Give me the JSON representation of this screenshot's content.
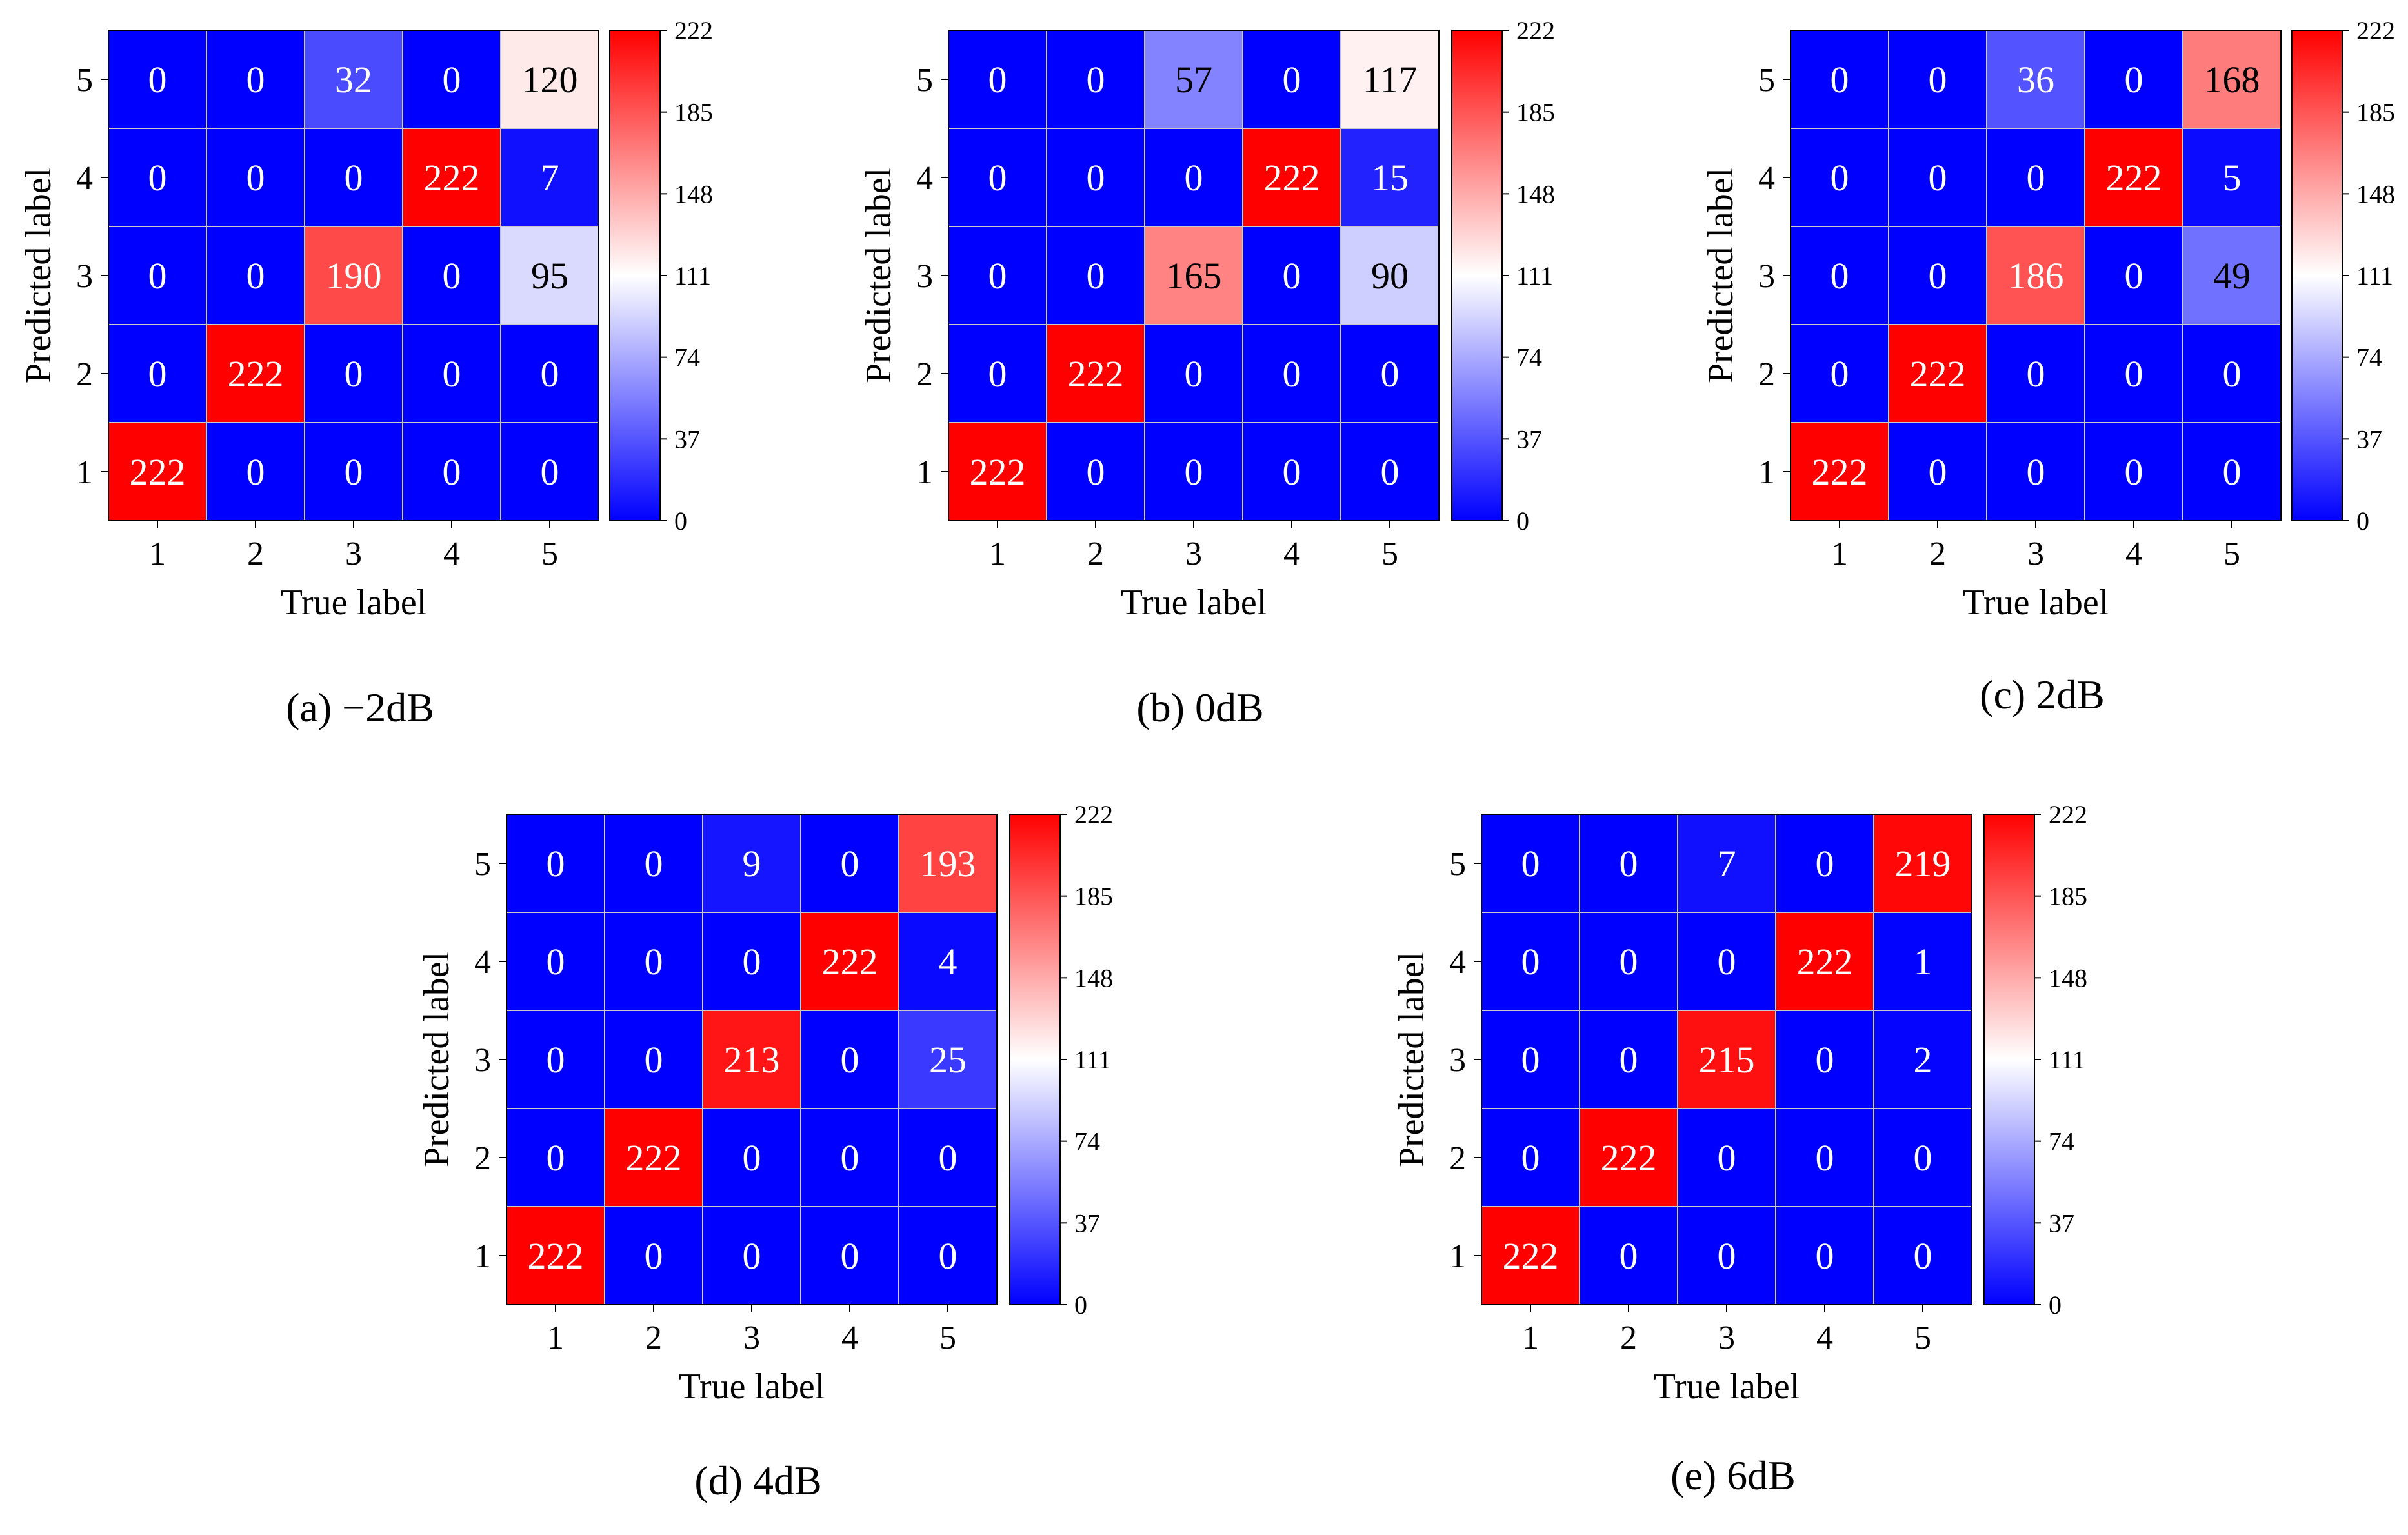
{
  "colors": {
    "low": "#0000ff",
    "mid": "#ffffff",
    "high": "#ff0000",
    "grid": "#c8c8c8",
    "text_dark": "#000000",
    "text_light": "#ffffff"
  },
  "chart_data": [
    {
      "type": "heatmap",
      "title": "(a) −2dB",
      "xlabel": "True label",
      "ylabel": "Predicted label",
      "x_categories": [
        "1",
        "2",
        "3",
        "4",
        "5"
      ],
      "y_categories": [
        "5",
        "4",
        "3",
        "2",
        "1"
      ],
      "values": [
        [
          0,
          0,
          32,
          0,
          120
        ],
        [
          0,
          0,
          0,
          222,
          7
        ],
        [
          0,
          0,
          190,
          0,
          95
        ],
        [
          0,
          222,
          0,
          0,
          0
        ],
        [
          222,
          0,
          0,
          0,
          0
        ]
      ],
      "vmin": 0,
      "vmax": 222,
      "colorbar_ticks": [
        "0",
        "37",
        "74",
        "111",
        "148",
        "185",
        "222"
      ]
    },
    {
      "type": "heatmap",
      "title": "(b) 0dB",
      "xlabel": "True label",
      "ylabel": "Predicted label",
      "x_categories": [
        "1",
        "2",
        "3",
        "4",
        "5"
      ],
      "y_categories": [
        "5",
        "4",
        "3",
        "2",
        "1"
      ],
      "values": [
        [
          0,
          0,
          57,
          0,
          117
        ],
        [
          0,
          0,
          0,
          222,
          15
        ],
        [
          0,
          0,
          165,
          0,
          90
        ],
        [
          0,
          222,
          0,
          0,
          0
        ],
        [
          222,
          0,
          0,
          0,
          0
        ]
      ],
      "vmin": 0,
      "vmax": 222,
      "colorbar_ticks": [
        "0",
        "37",
        "74",
        "111",
        "148",
        "185",
        "222"
      ]
    },
    {
      "type": "heatmap",
      "title": "(c) 2dB",
      "xlabel": "True label",
      "ylabel": "Predicted label",
      "x_categories": [
        "1",
        "2",
        "3",
        "4",
        "5"
      ],
      "y_categories": [
        "5",
        "4",
        "3",
        "2",
        "1"
      ],
      "values": [
        [
          0,
          0,
          36,
          0,
          168
        ],
        [
          0,
          0,
          0,
          222,
          5
        ],
        [
          0,
          0,
          186,
          0,
          49
        ],
        [
          0,
          222,
          0,
          0,
          0
        ],
        [
          222,
          0,
          0,
          0,
          0
        ]
      ],
      "vmin": 0,
      "vmax": 222,
      "colorbar_ticks": [
        "0",
        "37",
        "74",
        "111",
        "148",
        "185",
        "222"
      ]
    },
    {
      "type": "heatmap",
      "title": "(d) 4dB",
      "xlabel": "True label",
      "ylabel": "Predicted label",
      "x_categories": [
        "1",
        "2",
        "3",
        "4",
        "5"
      ],
      "y_categories": [
        "5",
        "4",
        "3",
        "2",
        "1"
      ],
      "values": [
        [
          0,
          0,
          9,
          0,
          193
        ],
        [
          0,
          0,
          0,
          222,
          4
        ],
        [
          0,
          0,
          213,
          0,
          25
        ],
        [
          0,
          222,
          0,
          0,
          0
        ],
        [
          222,
          0,
          0,
          0,
          0
        ]
      ],
      "vmin": 0,
      "vmax": 222,
      "colorbar_ticks": [
        "0",
        "37",
        "74",
        "111",
        "148",
        "185",
        "222"
      ]
    },
    {
      "type": "heatmap",
      "title": "(e) 6dB",
      "xlabel": "True label",
      "ylabel": "Predicted label",
      "x_categories": [
        "1",
        "2",
        "3",
        "4",
        "5"
      ],
      "y_categories": [
        "5",
        "4",
        "3",
        "2",
        "1"
      ],
      "values": [
        [
          0,
          0,
          7,
          0,
          219
        ],
        [
          0,
          0,
          0,
          222,
          1
        ],
        [
          0,
          0,
          215,
          0,
          2
        ],
        [
          0,
          222,
          0,
          0,
          0
        ],
        [
          222,
          0,
          0,
          0,
          0
        ]
      ],
      "vmin": 0,
      "vmax": 222,
      "colorbar_ticks": [
        "0",
        "37",
        "74",
        "111",
        "148",
        "185",
        "222"
      ]
    }
  ]
}
